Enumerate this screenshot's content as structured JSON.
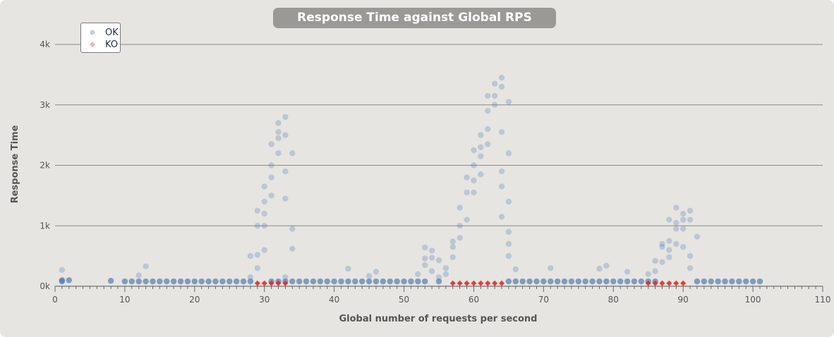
{
  "chart_data": {
    "type": "scatter",
    "title": "Response Time against Global RPS",
    "xlabel": "Global number of requests per second",
    "ylabel": "Response Time",
    "xlim": [
      0,
      110
    ],
    "ylim": [
      0,
      4000
    ],
    "x_ticks": [
      "0",
      "10",
      "20",
      "30",
      "40",
      "50",
      "60",
      "70",
      "80",
      "90",
      "100",
      "110"
    ],
    "y_ticks": [
      "0k",
      "1k",
      "2k",
      "3k",
      "4k"
    ],
    "grid": "horizontal",
    "legend_position": "top-left",
    "series": [
      {
        "name": "OK",
        "color": "#4a7ab0",
        "symbol": "circle",
        "points": [
          [
            1,
            270
          ],
          [
            1,
            100
          ],
          [
            1,
            80
          ],
          [
            2,
            100
          ],
          [
            8,
            90
          ],
          [
            10,
            80
          ],
          [
            11,
            80
          ],
          [
            12,
            80
          ],
          [
            12,
            180
          ],
          [
            13,
            330
          ],
          [
            13,
            80
          ],
          [
            14,
            80
          ],
          [
            15,
            80
          ],
          [
            16,
            80
          ],
          [
            17,
            80
          ],
          [
            18,
            80
          ],
          [
            19,
            80
          ],
          [
            20,
            80
          ],
          [
            21,
            80
          ],
          [
            22,
            80
          ],
          [
            23,
            80
          ],
          [
            24,
            80
          ],
          [
            25,
            80
          ],
          [
            26,
            80
          ],
          [
            27,
            80
          ],
          [
            28,
            80
          ],
          [
            28,
            150
          ],
          [
            28,
            500
          ],
          [
            29,
            300
          ],
          [
            29,
            520
          ],
          [
            29,
            1000
          ],
          [
            29,
            1250
          ],
          [
            30,
            600
          ],
          [
            30,
            1000
          ],
          [
            30,
            1200
          ],
          [
            30,
            1400
          ],
          [
            30,
            1650
          ],
          [
            31,
            1500
          ],
          [
            31,
            1800
          ],
          [
            31,
            2000
          ],
          [
            31,
            2350
          ],
          [
            32,
            2200
          ],
          [
            32,
            2450
          ],
          [
            32,
            2550
          ],
          [
            32,
            2700
          ],
          [
            33,
            1450
          ],
          [
            33,
            1900
          ],
          [
            33,
            2500
          ],
          [
            33,
            2800
          ],
          [
            34,
            2200
          ],
          [
            34,
            950
          ],
          [
            34,
            620
          ],
          [
            31,
            80
          ],
          [
            32,
            80
          ],
          [
            33,
            80
          ],
          [
            33,
            150
          ],
          [
            34,
            80
          ],
          [
            35,
            80
          ],
          [
            36,
            80
          ],
          [
            37,
            80
          ],
          [
            38,
            80
          ],
          [
            39,
            80
          ],
          [
            40,
            80
          ],
          [
            41,
            80
          ],
          [
            42,
            80
          ],
          [
            42,
            290
          ],
          [
            43,
            80
          ],
          [
            44,
            80
          ],
          [
            45,
            80
          ],
          [
            45,
            170
          ],
          [
            46,
            80
          ],
          [
            46,
            240
          ],
          [
            47,
            80
          ],
          [
            48,
            80
          ],
          [
            49,
            80
          ],
          [
            50,
            80
          ],
          [
            51,
            80
          ],
          [
            52,
            80
          ],
          [
            52,
            200
          ],
          [
            53,
            80
          ],
          [
            53,
            350
          ],
          [
            53,
            460
          ],
          [
            53,
            640
          ],
          [
            54,
            250
          ],
          [
            54,
            470
          ],
          [
            54,
            590
          ],
          [
            55,
            80
          ],
          [
            55,
            150
          ],
          [
            55,
            430
          ],
          [
            56,
            300
          ],
          [
            56,
            200
          ],
          [
            57,
            480
          ],
          [
            57,
            650
          ],
          [
            57,
            740
          ],
          [
            58,
            800
          ],
          [
            58,
            1000
          ],
          [
            58,
            1300
          ],
          [
            59,
            1100
          ],
          [
            59,
            1550
          ],
          [
            59,
            1800
          ],
          [
            60,
            1550
          ],
          [
            60,
            1750
          ],
          [
            60,
            2000
          ],
          [
            60,
            2250
          ],
          [
            61,
            2150
          ],
          [
            61,
            2300
          ],
          [
            61,
            2500
          ],
          [
            61,
            1850
          ],
          [
            62,
            2350
          ],
          [
            62,
            2600
          ],
          [
            62,
            2900
          ],
          [
            62,
            3150
          ],
          [
            63,
            3000
          ],
          [
            63,
            3150
          ],
          [
            63,
            3350
          ],
          [
            64,
            3450
          ],
          [
            64,
            3300
          ],
          [
            64,
            2550
          ],
          [
            64,
            1900
          ],
          [
            64,
            1150
          ],
          [
            64,
            1650
          ],
          [
            65,
            3050
          ],
          [
            65,
            2200
          ],
          [
            65,
            1400
          ],
          [
            65,
            900
          ],
          [
            65,
            700
          ],
          [
            65,
            500
          ],
          [
            65,
            80
          ],
          [
            66,
            80
          ],
          [
            66,
            280
          ],
          [
            67,
            80
          ],
          [
            68,
            80
          ],
          [
            69,
            80
          ],
          [
            70,
            80
          ],
          [
            71,
            80
          ],
          [
            71,
            300
          ],
          [
            72,
            80
          ],
          [
            73,
            80
          ],
          [
            74,
            80
          ],
          [
            75,
            80
          ],
          [
            76,
            80
          ],
          [
            77,
            80
          ],
          [
            78,
            80
          ],
          [
            78,
            290
          ],
          [
            79,
            80
          ],
          [
            79,
            340
          ],
          [
            80,
            80
          ],
          [
            81,
            80
          ],
          [
            82,
            80
          ],
          [
            82,
            240
          ],
          [
            83,
            80
          ],
          [
            84,
            80
          ],
          [
            85,
            80
          ],
          [
            85,
            200
          ],
          [
            86,
            80
          ],
          [
            86,
            250
          ],
          [
            86,
            420
          ],
          [
            87,
            400
          ],
          [
            87,
            650
          ],
          [
            87,
            700
          ],
          [
            88,
            480
          ],
          [
            88,
            600
          ],
          [
            88,
            750
          ],
          [
            88,
            1100
          ],
          [
            89,
            950
          ],
          [
            89,
            1050
          ],
          [
            89,
            1300
          ],
          [
            89,
            700
          ],
          [
            90,
            1200
          ],
          [
            90,
            1100
          ],
          [
            90,
            650
          ],
          [
            90,
            950
          ],
          [
            91,
            1250
          ],
          [
            91,
            1100
          ],
          [
            91,
            500
          ],
          [
            91,
            300
          ],
          [
            92,
            820
          ],
          [
            92,
            80
          ],
          [
            93,
            80
          ],
          [
            94,
            80
          ],
          [
            95,
            80
          ],
          [
            96,
            80
          ],
          [
            97,
            80
          ],
          [
            98,
            80
          ],
          [
            99,
            80
          ],
          [
            100,
            80
          ],
          [
            101,
            80
          ]
        ]
      },
      {
        "name": "KO",
        "color": "#e02c2c",
        "symbol": "diamond",
        "points": [
          [
            29,
            50
          ],
          [
            30,
            50
          ],
          [
            31,
            50
          ],
          [
            32,
            50
          ],
          [
            33,
            50
          ],
          [
            57,
            50
          ],
          [
            58,
            50
          ],
          [
            59,
            50
          ],
          [
            60,
            50
          ],
          [
            61,
            50
          ],
          [
            62,
            50
          ],
          [
            63,
            50
          ],
          [
            64,
            50
          ],
          [
            85,
            50
          ],
          [
            86,
            50
          ],
          [
            87,
            50
          ],
          [
            88,
            50
          ],
          [
            89,
            50
          ],
          [
            90,
            50
          ]
        ]
      }
    ]
  }
}
